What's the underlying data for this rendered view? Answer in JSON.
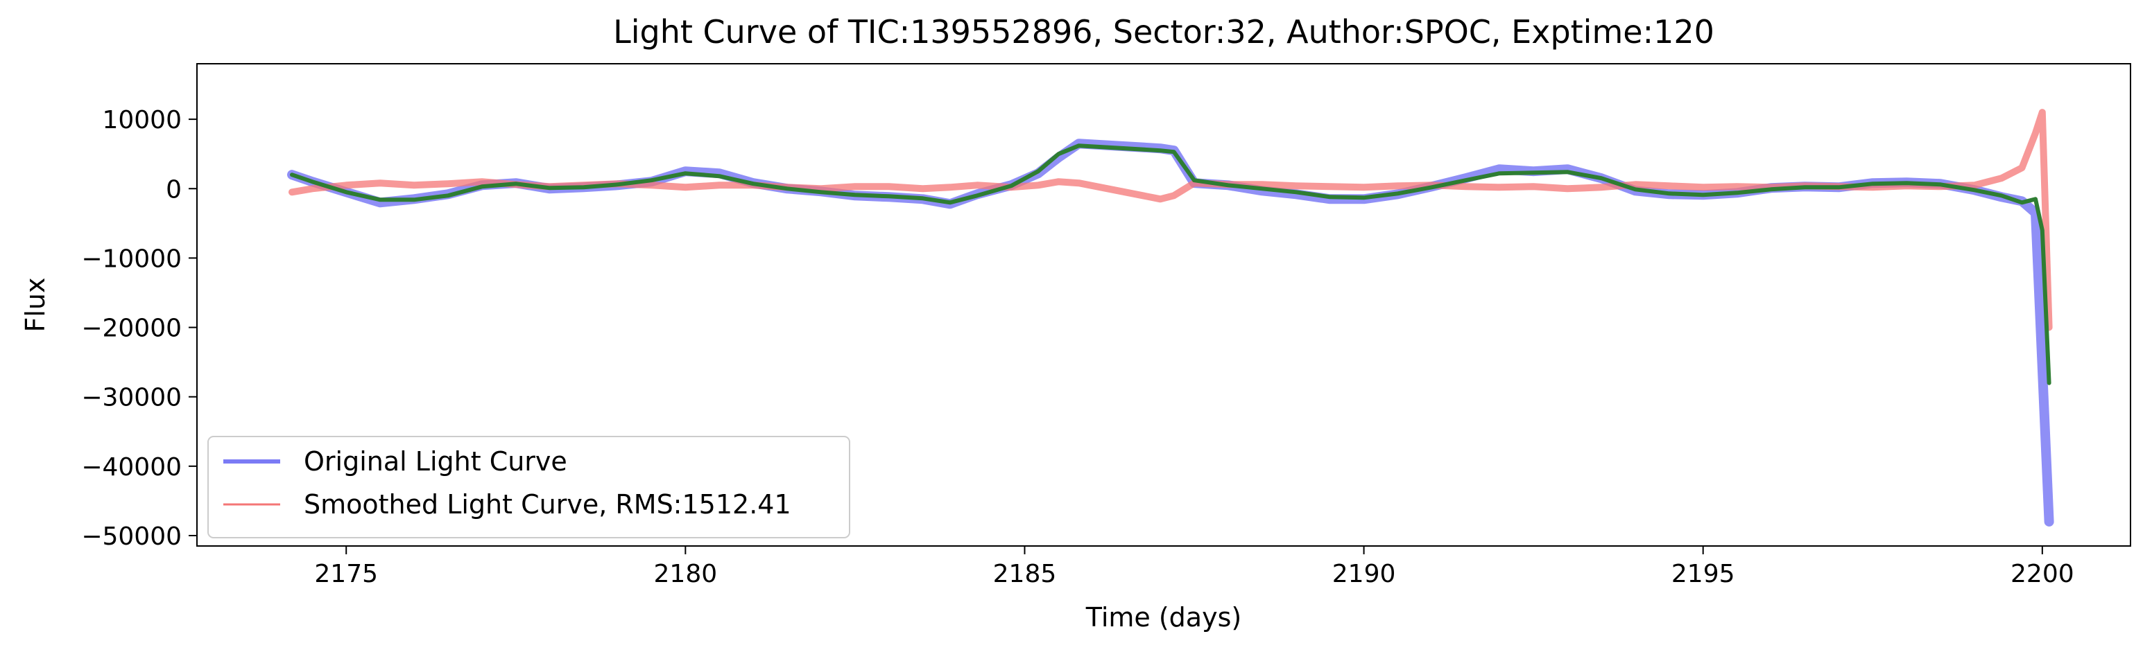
{
  "chart_data": {
    "type": "line",
    "title": "Light Curve of TIC:139552896, Sector:32, Author:SPOC, Exptime:120",
    "xlabel": "Time (days)",
    "ylabel": "Flux",
    "xlim": [
      2172.8,
      2201.3
    ],
    "ylim": [
      -51500,
      18000
    ],
    "xticks": [
      2175,
      2180,
      2185,
      2190,
      2195,
      2200
    ],
    "xtick_labels": [
      "2175",
      "2180",
      "2185",
      "2190",
      "2195",
      "2200"
    ],
    "yticks": [
      10000,
      0,
      -10000,
      -20000,
      -30000,
      -40000,
      -50000
    ],
    "ytick_labels": [
      "10000",
      "0",
      "−10000",
      "−20000",
      "−30000",
      "−40000",
      "−50000"
    ],
    "grid": false,
    "legend": "lower-left",
    "series": [
      {
        "name": "Original Light Curve",
        "color": "#7b7bf5",
        "x": [
          2174.2,
          2174.5,
          2175.0,
          2175.5,
          2176.0,
          2176.5,
          2177.0,
          2177.5,
          2178.0,
          2178.5,
          2179.0,
          2179.5,
          2180.0,
          2180.5,
          2181.0,
          2181.5,
          2182.0,
          2182.5,
          2183.0,
          2183.5,
          2183.9,
          2184.3,
          2184.8,
          2185.2,
          2185.5,
          2185.8,
          2187.0,
          2187.2,
          2187.5,
          2188.0,
          2188.5,
          2189.0,
          2189.5,
          2190.0,
          2190.5,
          2191.0,
          2191.5,
          2192.0,
          2192.5,
          2193.0,
          2193.5,
          2194.0,
          2194.5,
          2195.0,
          2195.5,
          2196.0,
          2196.5,
          2197.0,
          2197.5,
          2198.0,
          2198.5,
          2199.0,
          2199.4,
          2199.7,
          2199.9,
          2200.1
        ],
        "y": [
          2000,
          1000,
          -500,
          -2000,
          -1500,
          -800,
          500,
          800,
          0,
          200,
          500,
          1000,
          2500,
          2200,
          800,
          0,
          -400,
          -1000,
          -1200,
          -1500,
          -2200,
          -800,
          500,
          2200,
          4500,
          6500,
          5800,
          5500,
          800,
          500,
          -300,
          -800,
          -1500,
          -1500,
          -800,
          300,
          1500,
          2800,
          2500,
          2800,
          1500,
          -300,
          -800,
          -900,
          -600,
          100,
          300,
          200,
          800,
          900,
          700,
          -200,
          -1200,
          -1800,
          -3500,
          -48000
        ]
      },
      {
        "name": "Smoothed Light Curve, RMS:1512.41",
        "color": "#f47676",
        "x": [
          2174.2,
          2174.5,
          2175.0,
          2175.5,
          2176.0,
          2176.5,
          2177.0,
          2177.5,
          2178.0,
          2178.5,
          2179.0,
          2179.5,
          2180.0,
          2180.5,
          2181.0,
          2181.5,
          2182.0,
          2182.5,
          2183.0,
          2183.5,
          2183.9,
          2184.3,
          2184.8,
          2185.2,
          2185.5,
          2185.8,
          2187.0,
          2187.2,
          2187.5,
          2188.0,
          2188.5,
          2189.0,
          2189.5,
          2190.0,
          2190.5,
          2191.0,
          2191.5,
          2192.0,
          2192.5,
          2193.0,
          2193.5,
          2194.0,
          2194.5,
          2195.0,
          2195.5,
          2196.0,
          2196.5,
          2197.0,
          2197.5,
          2198.0,
          2198.5,
          2199.0,
          2199.4,
          2199.7,
          2199.9,
          2200.0,
          2200.1
        ],
        "y": [
          -500,
          0,
          500,
          800,
          500,
          700,
          1000,
          600,
          300,
          500,
          700,
          500,
          200,
          500,
          500,
          200,
          0,
          300,
          300,
          0,
          200,
          500,
          200,
          500,
          1000,
          800,
          -1500,
          -1000,
          800,
          600,
          600,
          400,
          300,
          200,
          400,
          500,
          300,
          200,
          300,
          0,
          200,
          600,
          400,
          200,
          300,
          200,
          400,
          300,
          200,
          400,
          300,
          500,
          1500,
          3000,
          8000,
          11000,
          -20000
        ]
      },
      {
        "name": "",
        "color": "#2e7d32",
        "x": [
          2174.2,
          2174.5,
          2175.0,
          2175.5,
          2176.0,
          2176.5,
          2177.0,
          2177.5,
          2178.0,
          2178.5,
          2179.0,
          2179.5,
          2180.0,
          2180.5,
          2181.0,
          2181.5,
          2182.0,
          2182.5,
          2183.0,
          2183.5,
          2183.9,
          2184.3,
          2184.8,
          2185.2,
          2185.5,
          2185.8,
          2187.0,
          2187.2,
          2187.5,
          2188.0,
          2188.5,
          2189.0,
          2189.5,
          2190.0,
          2190.5,
          2191.0,
          2191.5,
          2192.0,
          2192.5,
          2193.0,
          2193.5,
          2194.0,
          2194.5,
          2195.0,
          2195.5,
          2196.0,
          2196.5,
          2197.0,
          2197.5,
          2198.0,
          2198.5,
          2199.0,
          2199.4,
          2199.7,
          2199.9,
          2200.0,
          2200.1
        ],
        "y": [
          2000,
          1000,
          -500,
          -1600,
          -1600,
          -1000,
          300,
          700,
          100,
          200,
          600,
          1200,
          2200,
          1800,
          700,
          0,
          -500,
          -900,
          -1100,
          -1400,
          -2000,
          -1000,
          400,
          2500,
          5000,
          6200,
          5500,
          5300,
          1200,
          500,
          0,
          -500,
          -1200,
          -1300,
          -700,
          200,
          1200,
          2200,
          2300,
          2400,
          1500,
          -100,
          -700,
          -900,
          -600,
          -100,
          200,
          200,
          700,
          800,
          600,
          -200,
          -1000,
          -2000,
          -1500,
          -6000,
          -28000
        ]
      }
    ]
  }
}
